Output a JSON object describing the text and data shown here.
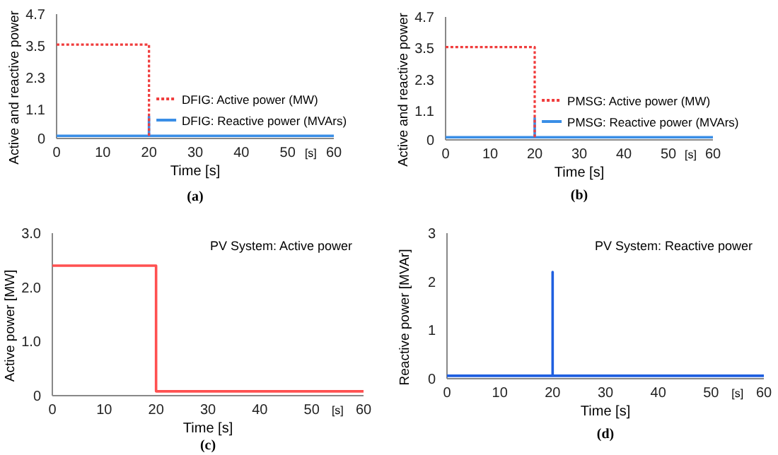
{
  "chart_data": [
    {
      "type": "line",
      "xlabel": "Time [s]",
      "ylabel": "Active and reactive power",
      "xlim": [
        0,
        60
      ],
      "xticks": [
        0,
        10,
        20,
        30,
        40,
        50,
        60
      ],
      "ylim": [
        0,
        4.7
      ],
      "yticks": [
        0,
        1.1,
        2.3,
        3.5,
        4.7
      ],
      "legend": "bottom right",
      "annotations": [
        "[s]",
        "(a)"
      ],
      "series": [
        {
          "name": "DFIG: Active power (MW)",
          "color": "#f03c3c",
          "line_style": "dotted",
          "x": [
            0,
            20,
            20
          ],
          "values": [
            3.55,
            3.55,
            0.1
          ]
        },
        {
          "name": "DFIG: Reactive power (MVArs)",
          "color": "#3a8ee6",
          "line_style": "solid",
          "x": [
            0,
            20,
            20,
            20,
            60
          ],
          "values": [
            0.1,
            0.1,
            0.83,
            0.1,
            0.1
          ]
        }
      ]
    },
    {
      "type": "line",
      "xlabel": "Time [s]",
      "ylabel": "Active and reactive power",
      "xlim": [
        0,
        60
      ],
      "xticks": [
        0,
        10,
        20,
        30,
        40,
        50,
        60
      ],
      "ylim": [
        0,
        4.7
      ],
      "yticks": [
        0,
        1.1,
        2.3,
        3.5,
        4.7
      ],
      "legend": "bottom right",
      "annotations": [
        "[s]",
        "(b)"
      ],
      "series": [
        {
          "name": "PMSG: Active power (MW)",
          "color": "#f03c3c",
          "line_style": "dotted",
          "x": [
            0,
            20,
            20
          ],
          "values": [
            3.55,
            3.55,
            0.1
          ]
        },
        {
          "name": "PMSG: Reactive power (MVArs)",
          "color": "#3a8ee6",
          "line_style": "solid",
          "x": [
            0,
            20,
            20,
            20,
            60
          ],
          "values": [
            0.1,
            0.1,
            0.83,
            0.1,
            0.1
          ]
        }
      ]
    },
    {
      "type": "line",
      "title": "PV System: Active power",
      "xlabel": "Time [s]",
      "ylabel": "Active power [MW]",
      "xlim": [
        0,
        60
      ],
      "xticks": [
        0,
        10,
        20,
        30,
        40,
        50,
        60
      ],
      "ylim": [
        0,
        3
      ],
      "yticks": [
        {
          "value": 0,
          "label": "0"
        },
        {
          "value": 1,
          "label": "1.0"
        },
        {
          "value": 2,
          "label": "2.0"
        },
        {
          "value": 3,
          "label": "3.0"
        }
      ],
      "annotations": [
        "[s]",
        "(c)"
      ],
      "series": [
        {
          "color": "#ff5050",
          "line_style": "solid",
          "x": [
            0,
            20,
            20,
            60
          ],
          "values": [
            2.4,
            2.4,
            0.08,
            0.08
          ]
        }
      ]
    },
    {
      "type": "line",
      "title": "PV System: Reactive power",
      "xlabel": "Time [s]",
      "ylabel": "Reactive power [MVAr]",
      "xlim": [
        0,
        60
      ],
      "xticks": [
        0,
        10,
        20,
        30,
        40,
        50,
        60
      ],
      "ylim": [
        0,
        3
      ],
      "yticks": [
        0,
        1,
        2,
        3
      ],
      "annotations": [
        "[s]",
        "(d)"
      ],
      "series": [
        {
          "color": "#1f5fe0",
          "line_style": "solid",
          "x": [
            0,
            20,
            20,
            20,
            60
          ],
          "values": [
            0.06,
            0.06,
            2.2,
            0.06,
            0.06
          ]
        }
      ]
    }
  ]
}
